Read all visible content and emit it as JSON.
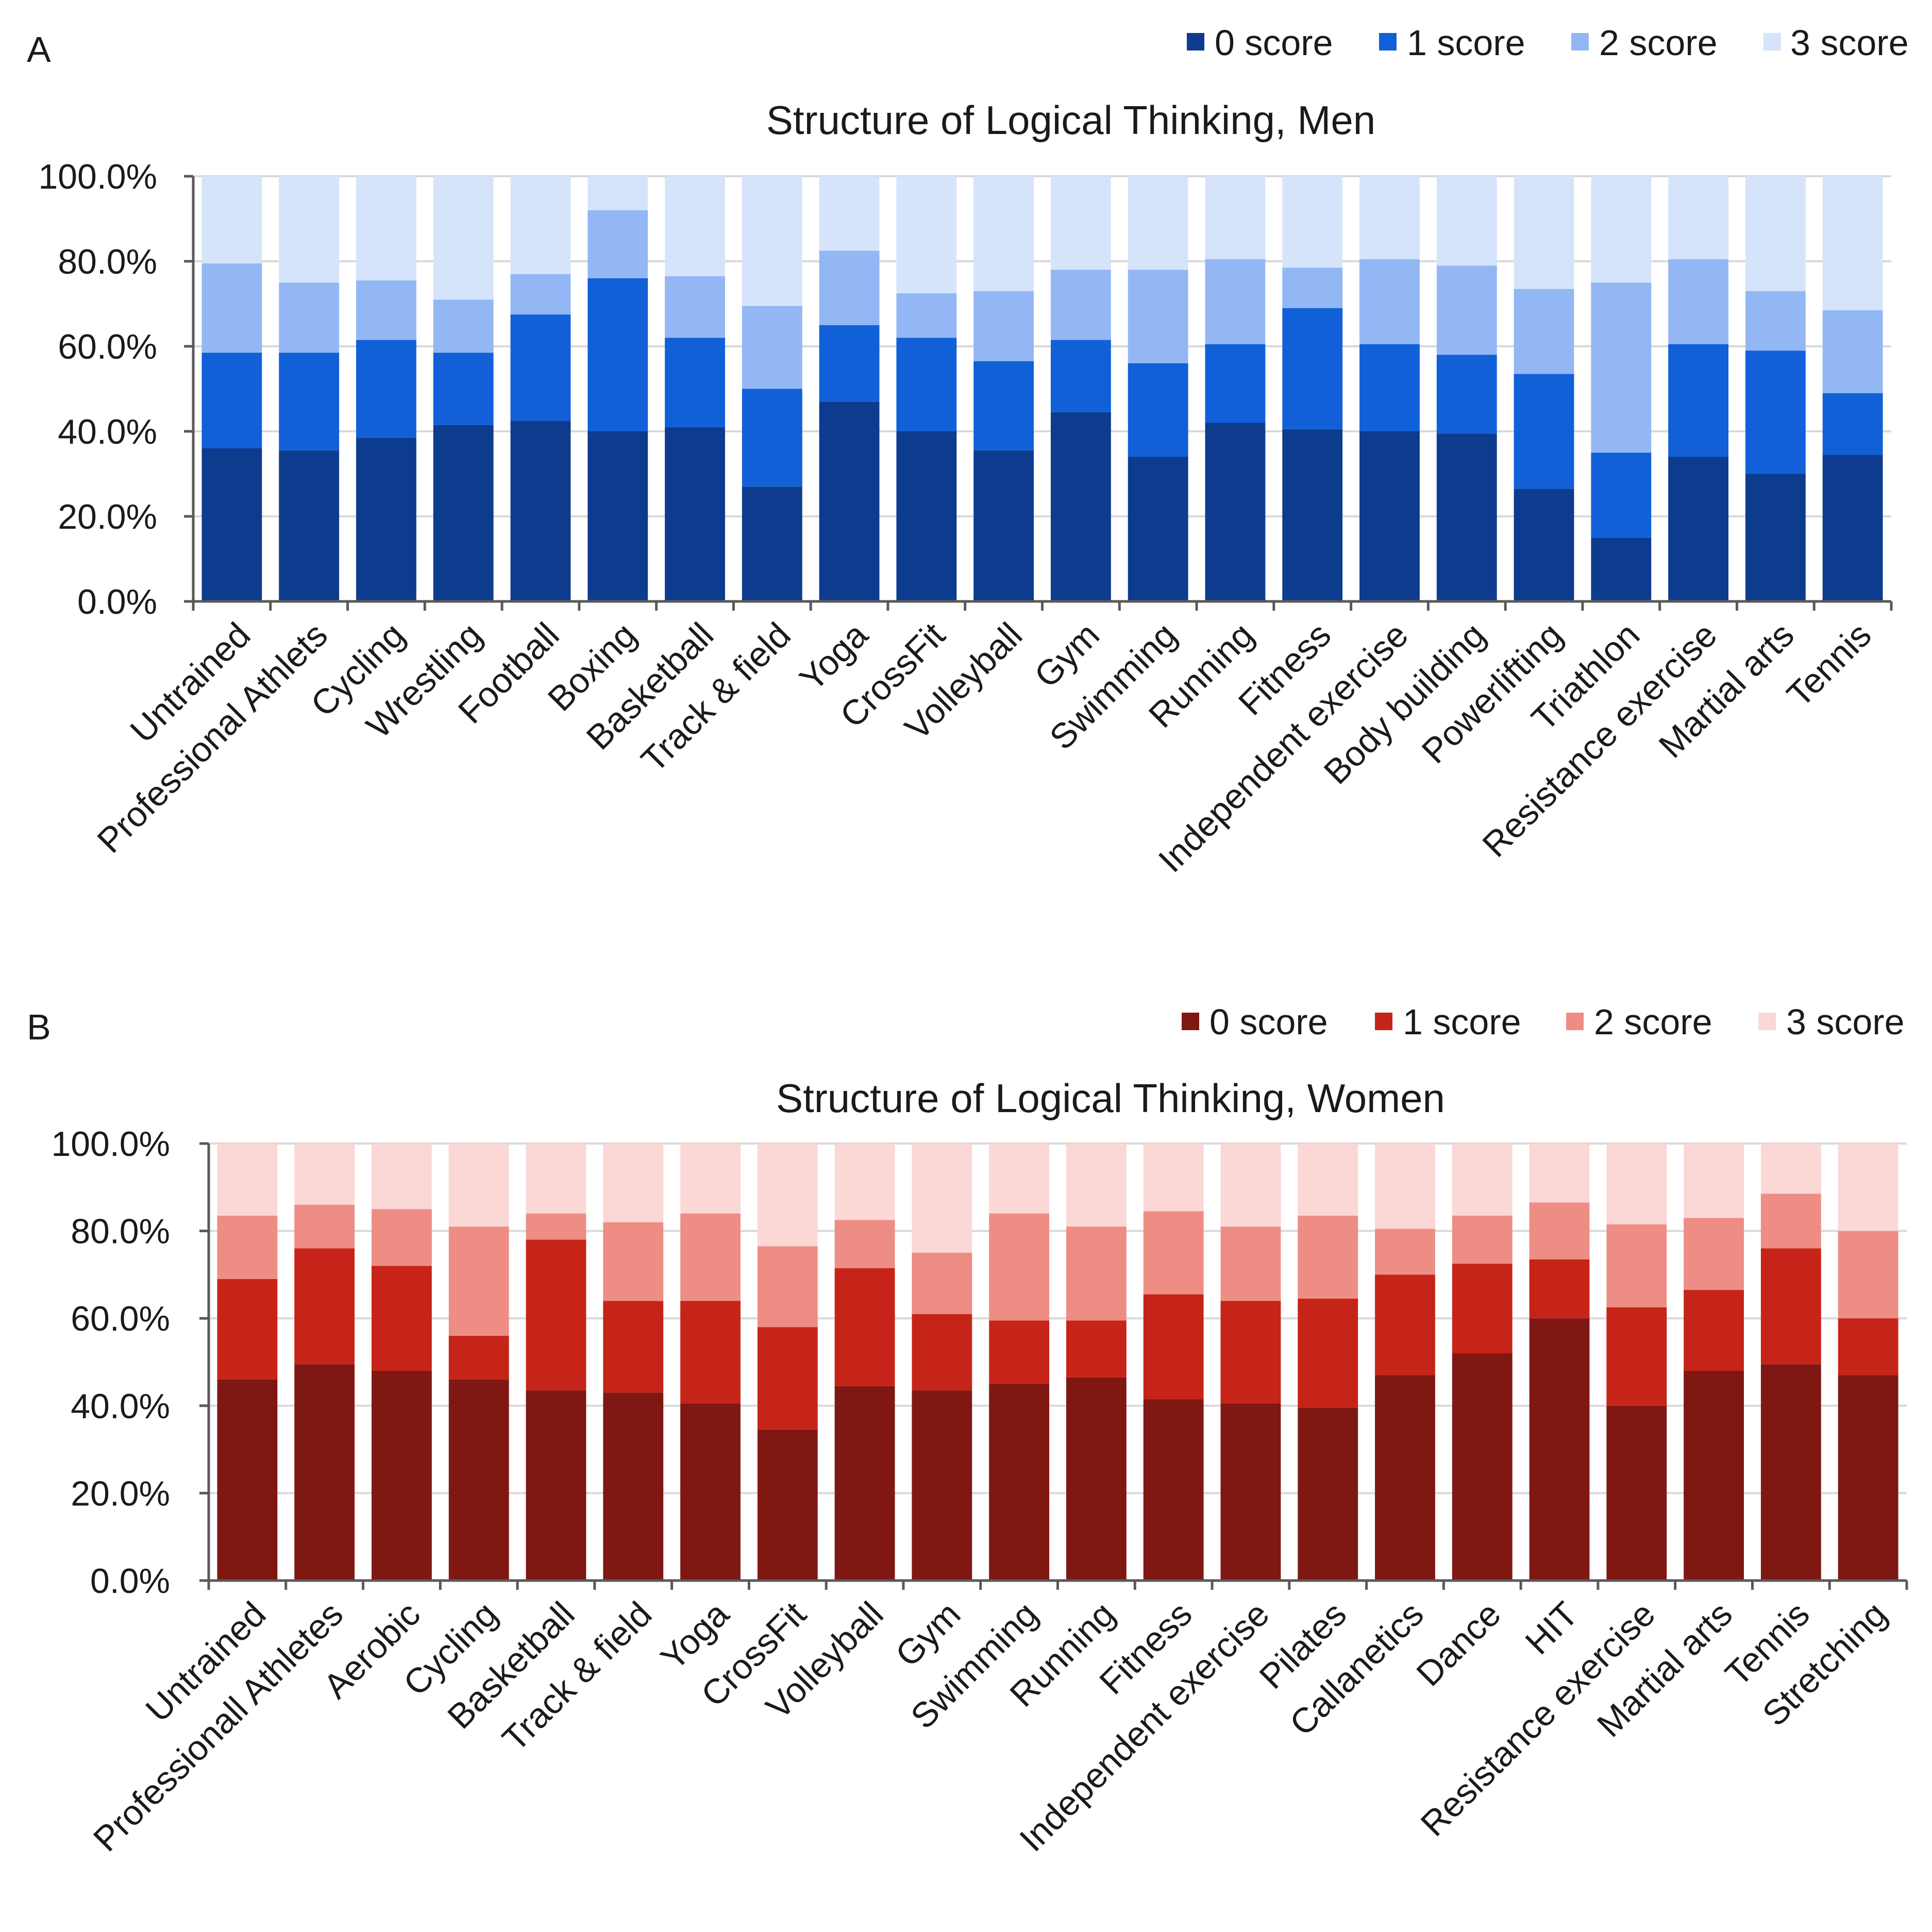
{
  "colors": {
    "men": [
      "#0d3b8e",
      "#1160d8",
      "#93b7f4",
      "#d6e4fb"
    ],
    "women": [
      "#7f1713",
      "#c62418",
      "#ee8d84",
      "#fbd7d6"
    ]
  },
  "panels": [
    {
      "label": "A"
    },
    {
      "label": "B"
    }
  ],
  "chart_data": [
    {
      "type": "bar",
      "stacked": true,
      "title": "Structure of Logical Thinking, Men",
      "xlabel": "",
      "ylabel": "",
      "ylim": [
        0,
        100
      ],
      "y_tick_labels": [
        "0.0%",
        "20.0%",
        "40.0%",
        "60.0%",
        "80.0%",
        "100.0%"
      ],
      "legend": "top-right",
      "categories": [
        "Untrained",
        "Professional Athlets",
        "Cycling",
        "Wrestling",
        "Football",
        "Boxing",
        "Basketball",
        "Track & field",
        "Yoga",
        "CrossFit",
        "Volleyball",
        "Gym",
        "Swimming",
        "Running",
        "Fitness",
        "Independent exercise",
        "Body building",
        "Powerlifting",
        "Triathlon",
        "Resistance exercise",
        "Martial arts",
        "Tennis"
      ],
      "series": [
        {
          "name": "0 score",
          "values": [
            36,
            35.5,
            38.5,
            41.5,
            42.5,
            40,
            41,
            27,
            47,
            40,
            35.5,
            44.5,
            34,
            42,
            40.5,
            40,
            39.5,
            26.5,
            15,
            34,
            30,
            34.5
          ]
        },
        {
          "name": "1 score",
          "values": [
            22.5,
            23,
            23,
            17,
            25,
            36,
            21,
            23,
            18,
            22,
            21,
            17,
            22,
            18.5,
            28.5,
            20.5,
            18.5,
            27,
            20,
            26.5,
            29,
            14.5
          ]
        },
        {
          "name": "2 score",
          "values": [
            21,
            16.5,
            14,
            12.5,
            9.5,
            16,
            14.5,
            19.5,
            17.5,
            10.5,
            16.5,
            16.5,
            22,
            20,
            9.5,
            20,
            21,
            20,
            40,
            20,
            14,
            19.5
          ]
        },
        {
          "name": "3 score",
          "values": [
            20.5,
            25,
            24.5,
            29,
            23,
            8,
            23.5,
            30.5,
            17.5,
            27.5,
            27,
            22,
            22,
            19.5,
            21.5,
            19.5,
            21,
            26.5,
            25,
            19.5,
            27,
            31.5
          ]
        }
      ]
    },
    {
      "type": "bar",
      "stacked": true,
      "title": "Structure of Logical Thinking, Women",
      "xlabel": "",
      "ylabel": "",
      "ylim": [
        0,
        100
      ],
      "y_tick_labels": [
        "0.0%",
        "20.0%",
        "40.0%",
        "60.0%",
        "80.0%",
        "100.0%"
      ],
      "legend": "top-right",
      "categories": [
        "Untrained",
        "Professionall Athletes",
        "Aerobic",
        "Cycling",
        "Basketball",
        "Track & field",
        "Yoga",
        "CrossFit",
        "Volleyball",
        "Gym",
        "Swimming",
        "Running",
        "Fitness",
        "Independent exercise",
        "Pilates",
        "Callanetics",
        "Dance",
        "HIT",
        "Resistance exercise",
        "Martial arts",
        "Tennis",
        "Stretching"
      ],
      "series": [
        {
          "name": "0 score",
          "values": [
            46,
            49.5,
            48,
            46,
            43.5,
            43,
            40.5,
            34.5,
            44.5,
            43.5,
            45,
            46.5,
            41.5,
            40.5,
            39.5,
            47,
            52,
            60,
            40,
            48,
            49.5,
            47
          ]
        },
        {
          "name": "1 score",
          "values": [
            23,
            26.5,
            24,
            10,
            34.5,
            21,
            23.5,
            23.5,
            27,
            17.5,
            14.5,
            13,
            24,
            23.5,
            25,
            23,
            20.5,
            13.5,
            22.5,
            18.5,
            26.5,
            13
          ]
        },
        {
          "name": "2 score",
          "values": [
            14.5,
            10,
            13,
            25,
            6,
            18,
            20,
            18.5,
            11,
            14,
            24.5,
            21.5,
            19,
            17,
            19,
            10.5,
            11,
            13,
            19,
            16.5,
            12.5,
            20
          ]
        },
        {
          "name": "3 score",
          "values": [
            16.5,
            14,
            15,
            19,
            16,
            18,
            16,
            23.5,
            17.5,
            25,
            16,
            19,
            15.5,
            19,
            16.5,
            19.5,
            16.5,
            13.5,
            18.5,
            17,
            11.5,
            20
          ]
        }
      ]
    }
  ]
}
